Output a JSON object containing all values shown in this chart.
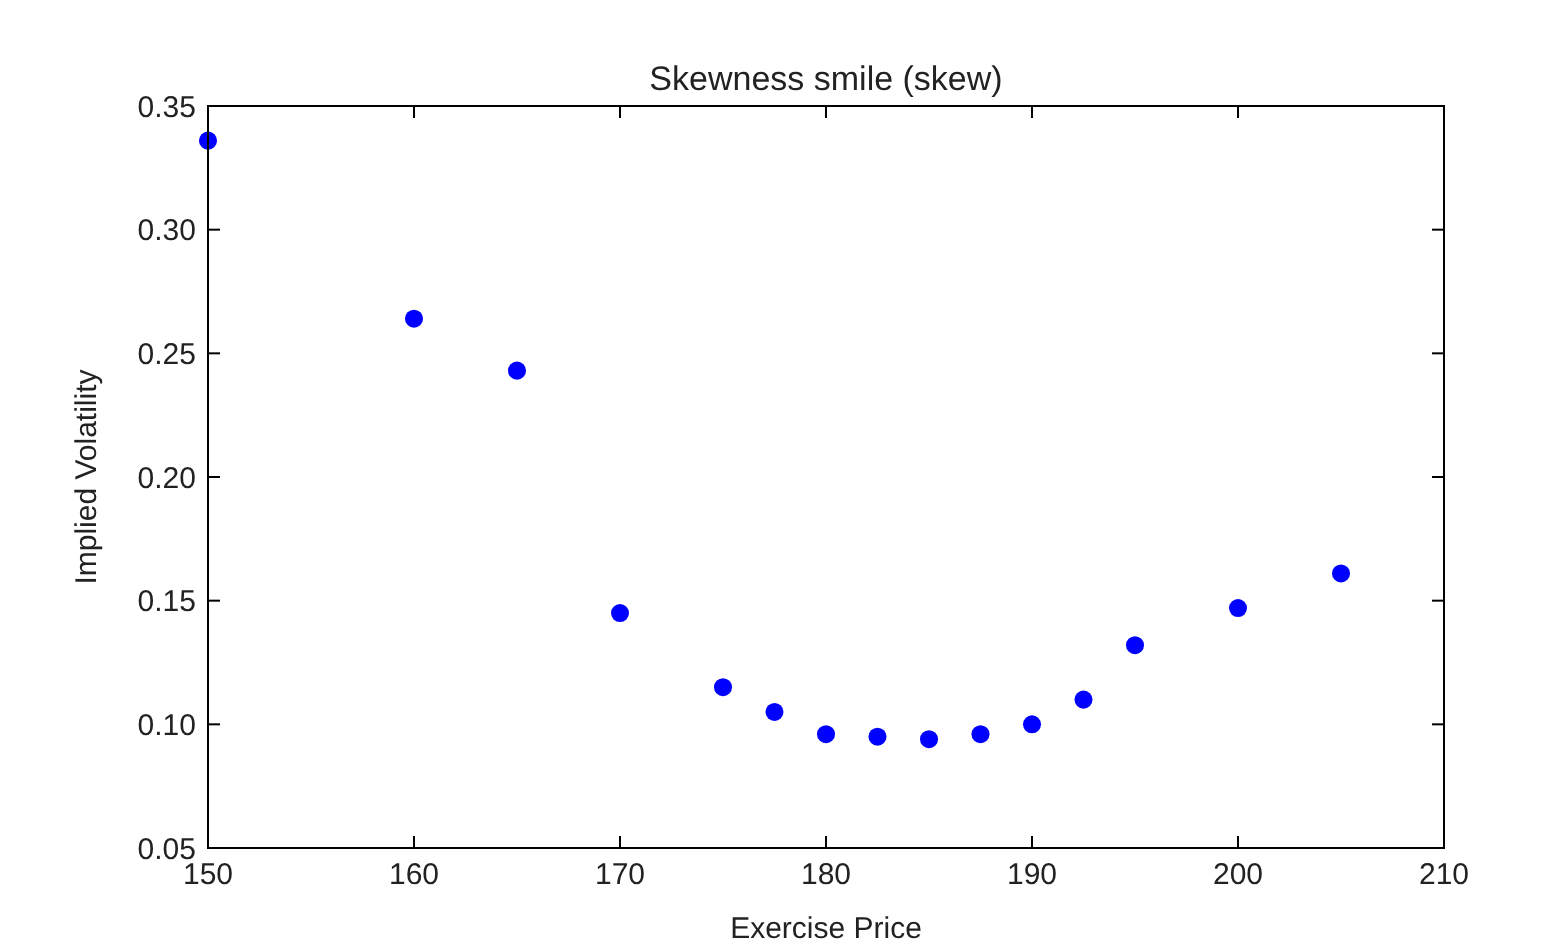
{
  "chart_data": {
    "type": "scatter",
    "title": "Skewness smile (skew)",
    "xlabel": "Exercise Price",
    "ylabel": "Implied Volatility",
    "x": [
      150,
      160,
      165,
      170,
      175,
      177.5,
      180,
      182.5,
      185,
      187.5,
      190,
      192.5,
      195,
      200,
      205
    ],
    "series": [
      {
        "color": "#0000ff",
        "values": [
          0.336,
          0.264,
          0.243,
          0.145,
          0.115,
          0.105,
          0.096,
          0.095,
          0.094,
          0.096,
          0.1,
          0.11,
          0.132,
          0.147,
          0.161
        ]
      }
    ],
    "xlim": [
      150,
      210
    ],
    "xticks": [
      150,
      160,
      170,
      180,
      190,
      200,
      210
    ],
    "ylim": [
      0.05,
      0.35
    ],
    "yticks": [
      {
        "value": 0.05,
        "label": "0.05"
      },
      {
        "value": 0.1,
        "label": "0.10"
      },
      {
        "value": 0.15,
        "label": "0.15"
      },
      {
        "value": 0.2,
        "label": "0.20"
      },
      {
        "value": 0.25,
        "label": "0.25"
      },
      {
        "value": 0.3,
        "label": "0.30"
      },
      {
        "value": 0.35,
        "label": "0.35"
      }
    ],
    "marker": "circle",
    "grid": false
  }
}
